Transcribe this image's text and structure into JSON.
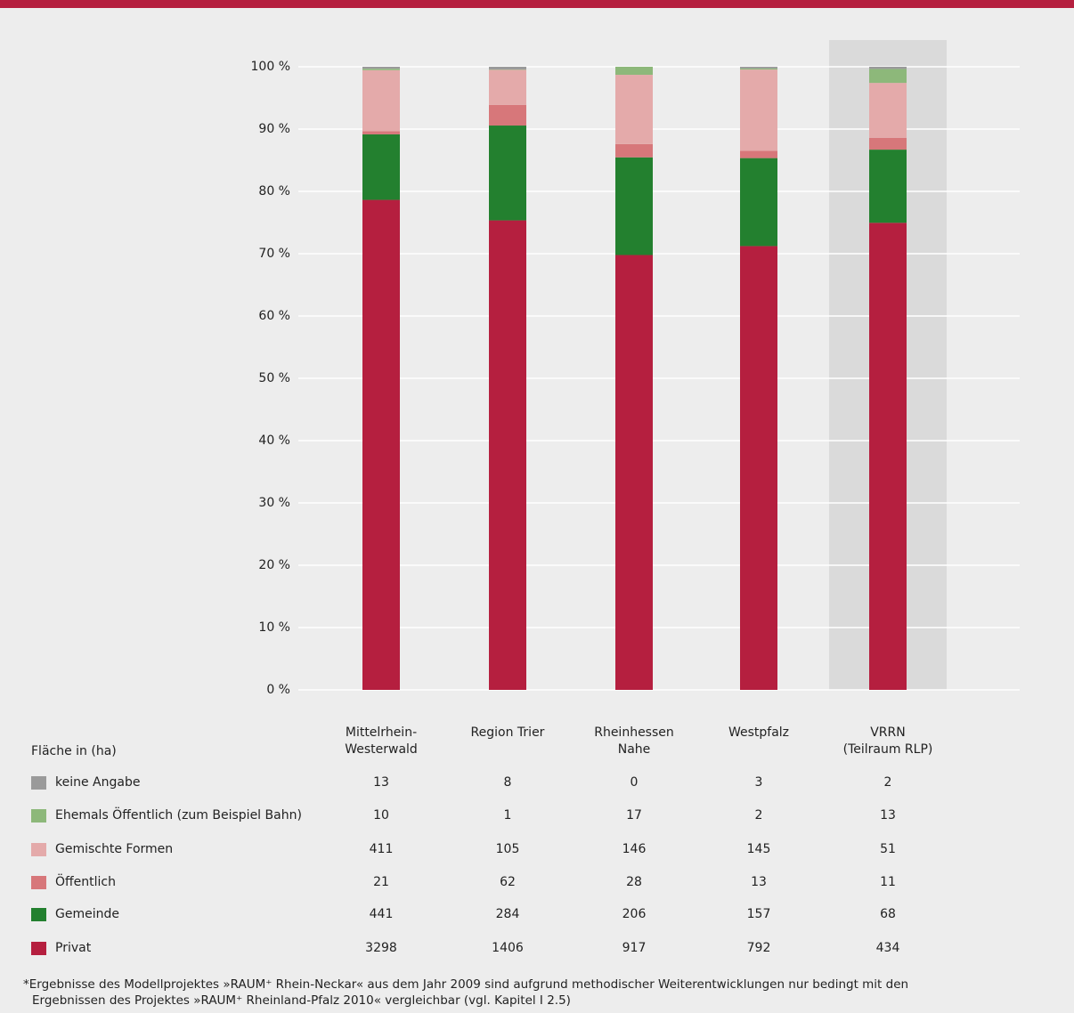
{
  "chart_data": {
    "type": "stacked_percent_bar",
    "table_header": "Fläche in (ha)",
    "categories": [
      "Mittelrhein-\nWesterwald",
      "Region Trier",
      "Rheinhessen\nNahe",
      "Westpfalz",
      "VRRN\n(Teilraum RLP)"
    ],
    "highlighted_category": 4,
    "ylim": [
      0,
      100
    ],
    "yticks": [
      {
        "value": 0,
        "label": "0 %"
      },
      {
        "value": 10,
        "label": "10 %"
      },
      {
        "value": 20,
        "label": "20 %"
      },
      {
        "value": 30,
        "label": "30 %"
      },
      {
        "value": 40,
        "label": "40 %"
      },
      {
        "value": 50,
        "label": "50 %"
      },
      {
        "value": 60,
        "label": "60 %"
      },
      {
        "value": 70,
        "label": "70 %"
      },
      {
        "value": 80,
        "label": "80 %"
      },
      {
        "value": 90,
        "label": "90 %"
      },
      {
        "value": 100,
        "label": "100 %"
      }
    ],
    "grid": true,
    "series": [
      {
        "name": "keine Angabe",
        "color": "#9a9a9a",
        "values": [
          13,
          8,
          0,
          3,
          2
        ]
      },
      {
        "name": "Ehemals Öffentlich (zum Beispiel Bahn)",
        "color": "#8db87a",
        "values": [
          10,
          1,
          17,
          2,
          13
        ]
      },
      {
        "name": "Gemischte Formen",
        "color": "#e4aaaa",
        "values": [
          411,
          105,
          146,
          145,
          51
        ]
      },
      {
        "name": "Öffentlich",
        "color": "#d7777a",
        "values": [
          21,
          62,
          28,
          13,
          11
        ]
      },
      {
        "name": "Gemeinde",
        "color": "#23802f",
        "values": [
          441,
          284,
          206,
          157,
          68
        ]
      },
      {
        "name": "Privat",
        "color": "#b51f3f",
        "values": [
          3298,
          1406,
          917,
          792,
          434
        ]
      }
    ],
    "footnote": [
      "*Ergebnisse des Modellprojektes »RAUM⁺ Rhein-Neckar« aus dem Jahr 2009 sind aufgrund methodischer Weiterentwicklungen nur bedingt mit den",
      "Ergebnissen des Projektes »RAUM⁺ Rheinland-Pfalz 2010« vergleichbar (vgl. Kapitel I 2.5)"
    ]
  }
}
